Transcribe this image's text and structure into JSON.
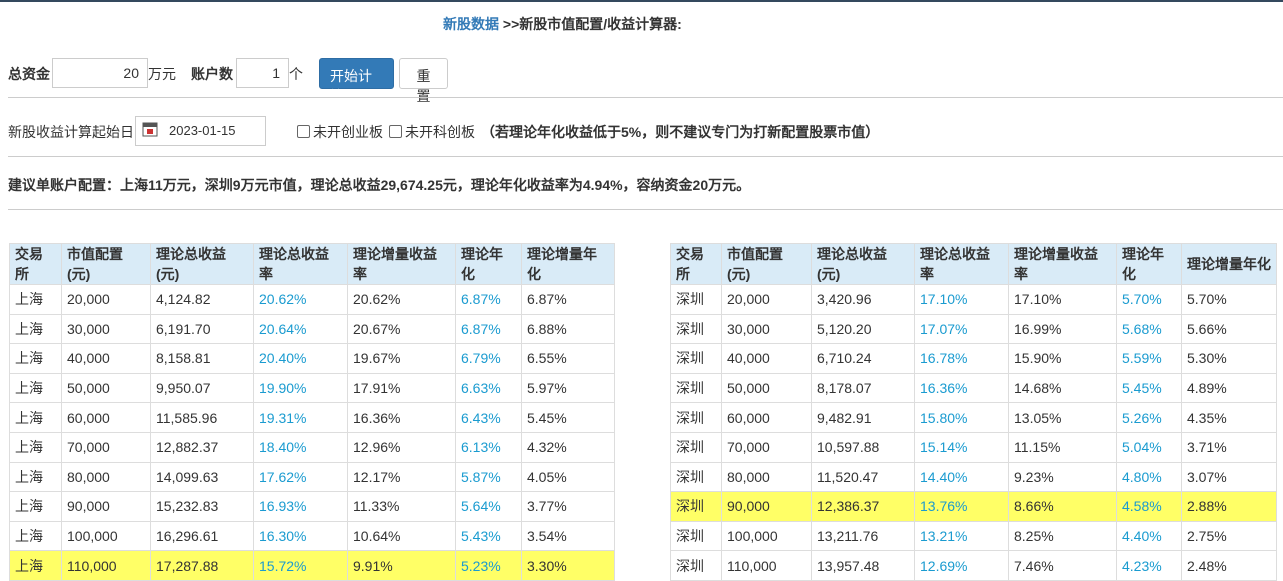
{
  "header": {
    "link": "新股数据",
    "title": " >>新股市值配置/收益计算器:"
  },
  "form": {
    "capital_label": "总资金",
    "capital_value": "20",
    "capital_unit": "万元",
    "accounts_label": "账户数",
    "accounts_value": "1",
    "accounts_unit": "个",
    "calc_button": "开始计算",
    "reset_button": "重置",
    "start_label": "新股收益计算起始日",
    "start_date": "2023-01-15",
    "check_cyb": "未开创业板",
    "check_kcb": "未开科创板",
    "note": "（若理论年化收益低于5%，则不建议专门为打新配置股票市值）"
  },
  "advice": "建议单账户配置：上海11万元，深圳9万元市值，理论总收益29,674.25元，理论年化收益率为4.94%，容纳资金20万元。",
  "tables": [
    {
      "headers": [
        "交易所",
        "市值配置(元)",
        "理论总收益(元)",
        "理论总收益率",
        "理论增量收益率",
        "理论年化",
        "理论增量年化"
      ],
      "highlight_row": 9,
      "rows": [
        [
          "上海",
          "20,000",
          "4,124.82",
          "20.62%",
          "20.62%",
          "6.87%",
          "6.87%"
        ],
        [
          "上海",
          "30,000",
          "6,191.70",
          "20.64%",
          "20.67%",
          "6.87%",
          "6.88%"
        ],
        [
          "上海",
          "40,000",
          "8,158.81",
          "20.40%",
          "19.67%",
          "6.79%",
          "6.55%"
        ],
        [
          "上海",
          "50,000",
          "9,950.07",
          "19.90%",
          "17.91%",
          "6.63%",
          "5.97%"
        ],
        [
          "上海",
          "60,000",
          "11,585.96",
          "19.31%",
          "16.36%",
          "6.43%",
          "5.45%"
        ],
        [
          "上海",
          "70,000",
          "12,882.37",
          "18.40%",
          "12.96%",
          "6.13%",
          "4.32%"
        ],
        [
          "上海",
          "80,000",
          "14,099.63",
          "17.62%",
          "12.17%",
          "5.87%",
          "4.05%"
        ],
        [
          "上海",
          "90,000",
          "15,232.83",
          "16.93%",
          "11.33%",
          "5.64%",
          "3.77%"
        ],
        [
          "上海",
          "100,000",
          "16,296.61",
          "16.30%",
          "10.64%",
          "5.43%",
          "3.54%"
        ],
        [
          "上海",
          "110,000",
          "17,287.88",
          "15.72%",
          "9.91%",
          "5.23%",
          "3.30%"
        ]
      ]
    },
    {
      "headers": [
        "交易所",
        "市值配置(元)",
        "理论总收益(元)",
        "理论总收益率",
        "理论增量收益率",
        "理论年化",
        "理论增量年化"
      ],
      "highlight_row": 7,
      "rows": [
        [
          "深圳",
          "20,000",
          "3,420.96",
          "17.10%",
          "17.10%",
          "5.70%",
          "5.70%"
        ],
        [
          "深圳",
          "30,000",
          "5,120.20",
          "17.07%",
          "16.99%",
          "5.68%",
          "5.66%"
        ],
        [
          "深圳",
          "40,000",
          "6,710.24",
          "16.78%",
          "15.90%",
          "5.59%",
          "5.30%"
        ],
        [
          "深圳",
          "50,000",
          "8,178.07",
          "16.36%",
          "14.68%",
          "5.45%",
          "4.89%"
        ],
        [
          "深圳",
          "60,000",
          "9,482.91",
          "15.80%",
          "13.05%",
          "5.26%",
          "4.35%"
        ],
        [
          "深圳",
          "70,000",
          "10,597.88",
          "15.14%",
          "11.15%",
          "5.04%",
          "3.71%"
        ],
        [
          "深圳",
          "80,000",
          "11,520.47",
          "14.40%",
          "9.23%",
          "4.80%",
          "3.07%"
        ],
        [
          "深圳",
          "90,000",
          "12,386.37",
          "13.76%",
          "8.66%",
          "4.58%",
          "2.88%"
        ],
        [
          "深圳",
          "100,000",
          "13,211.76",
          "13.21%",
          "8.25%",
          "4.40%",
          "2.75%"
        ],
        [
          "深圳",
          "110,000",
          "13,957.48",
          "12.69%",
          "7.46%",
          "4.23%",
          "2.48%"
        ]
      ]
    }
  ]
}
